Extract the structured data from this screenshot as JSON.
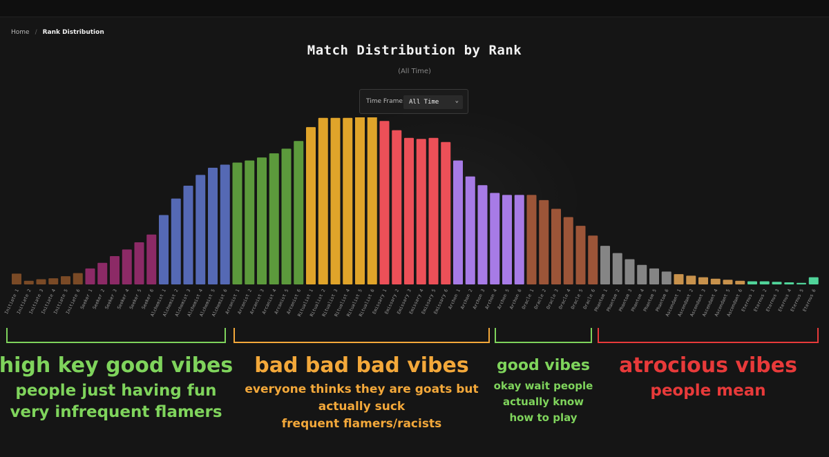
{
  "breadcrumb": {
    "home": "Home",
    "separator": "/",
    "current": "Rank Distribution"
  },
  "title": "Match Distribution by Rank",
  "subtitle": "(All Time)",
  "timeframe": {
    "label": "Time Frame:",
    "selected": "All Time"
  },
  "colors": {
    "Initiate": "#7a4a26",
    "Seeker": "#8c2a66",
    "Alchemist": "#5569b4",
    "Arcanist": "#5c9a3c",
    "Ritualist": "#e0a42a",
    "Emissary": "#ec5058",
    "Archon": "#a77be6",
    "Oracle": "#9c5538",
    "Phantom": "#858585",
    "Ascendant": "#c8924c",
    "Eternus": "#50d49a"
  },
  "chart_data": {
    "type": "bar",
    "title": "Match Distribution by Rank",
    "categories": [
      "Initiate 1",
      "Initiate 2",
      "Initiate 3",
      "Initiate 4",
      "Initiate 5",
      "Initiate 6",
      "Seeker 1",
      "Seeker 2",
      "Seeker 3",
      "Seeker 4",
      "Seeker 5",
      "Seeker 6",
      "Alchemist 1",
      "Alchemist 2",
      "Alchemist 3",
      "Alchemist 4",
      "Alchemist 5",
      "Alchemist 6",
      "Arcanist 1",
      "Arcanist 2",
      "Arcanist 3",
      "Arcanist 4",
      "Arcanist 5",
      "Arcanist 6",
      "Ritualist 1",
      "Ritualist 2",
      "Ritualist 3",
      "Ritualist 4",
      "Ritualist 5",
      "Ritualist 6",
      "Emissary 1",
      "Emissary 2",
      "Emissary 3",
      "Emissary 4",
      "Emissary 5",
      "Emissary 6",
      "Archon 1",
      "Archon 2",
      "Archon 3",
      "Archon 4",
      "Archon 5",
      "Archon 6",
      "Oracle 1",
      "Oracle 2",
      "Oracle 3",
      "Oracle 4",
      "Oracle 5",
      "Oracle 6",
      "Phantom 1",
      "Phantom 2",
      "Phantom 3",
      "Phantom 4",
      "Phantom 5",
      "Phantom 6",
      "Ascendant 1",
      "Ascendant 2",
      "Ascendant 3",
      "Ascendant 4",
      "Ascendant 5",
      "Ascendant 6",
      "Eternus 1",
      "Eternus 2",
      "Eternus 3",
      "Eternus 4",
      "Eternus 5",
      "Eternus 6"
    ],
    "values": [
      21,
      7,
      10,
      12,
      16,
      22,
      31,
      42,
      55,
      68,
      82,
      97,
      135,
      167,
      192,
      213,
      227,
      233,
      237,
      241,
      247,
      255,
      264,
      279,
      306,
      324,
      324,
      324,
      326,
      326,
      318,
      300,
      285,
      283,
      285,
      277,
      241,
      210,
      193,
      178,
      174,
      174,
      174,
      164,
      147,
      131,
      114,
      95,
      75,
      61,
      49,
      38,
      31,
      25,
      20,
      17,
      14,
      11,
      9,
      7,
      6,
      6,
      5,
      4,
      3,
      14
    ],
    "ylim": [
      0,
      340
    ],
    "grid": false,
    "legend": "none",
    "annotations": [
      {
        "text": "high key good vibes",
        "subtext": [
          "people just having fun",
          "very infrequent flamers"
        ],
        "color": "#7fd45c",
        "range": [
          "Initiate 1",
          "Arcanist 1"
        ]
      },
      {
        "text": "bad bad bad vibes",
        "subtext": [
          "everyone thinks they are goats but",
          "actually suck",
          "frequent flamers/racists"
        ],
        "color": "#f3a83a",
        "range": [
          "Arcanist 2",
          "Archon 5"
        ]
      },
      {
        "text": "good vibes",
        "subtext": [
          "okay wait people",
          "actually know",
          "how to play"
        ],
        "color": "#7fd45c",
        "range": [
          "Archon 6",
          "Oracle 6"
        ]
      },
      {
        "text": "atrocious vibes",
        "subtext": [
          "people mean"
        ],
        "color": "#e83a3a",
        "range": [
          "Phantom 1",
          "Eternus 6"
        ]
      }
    ]
  }
}
